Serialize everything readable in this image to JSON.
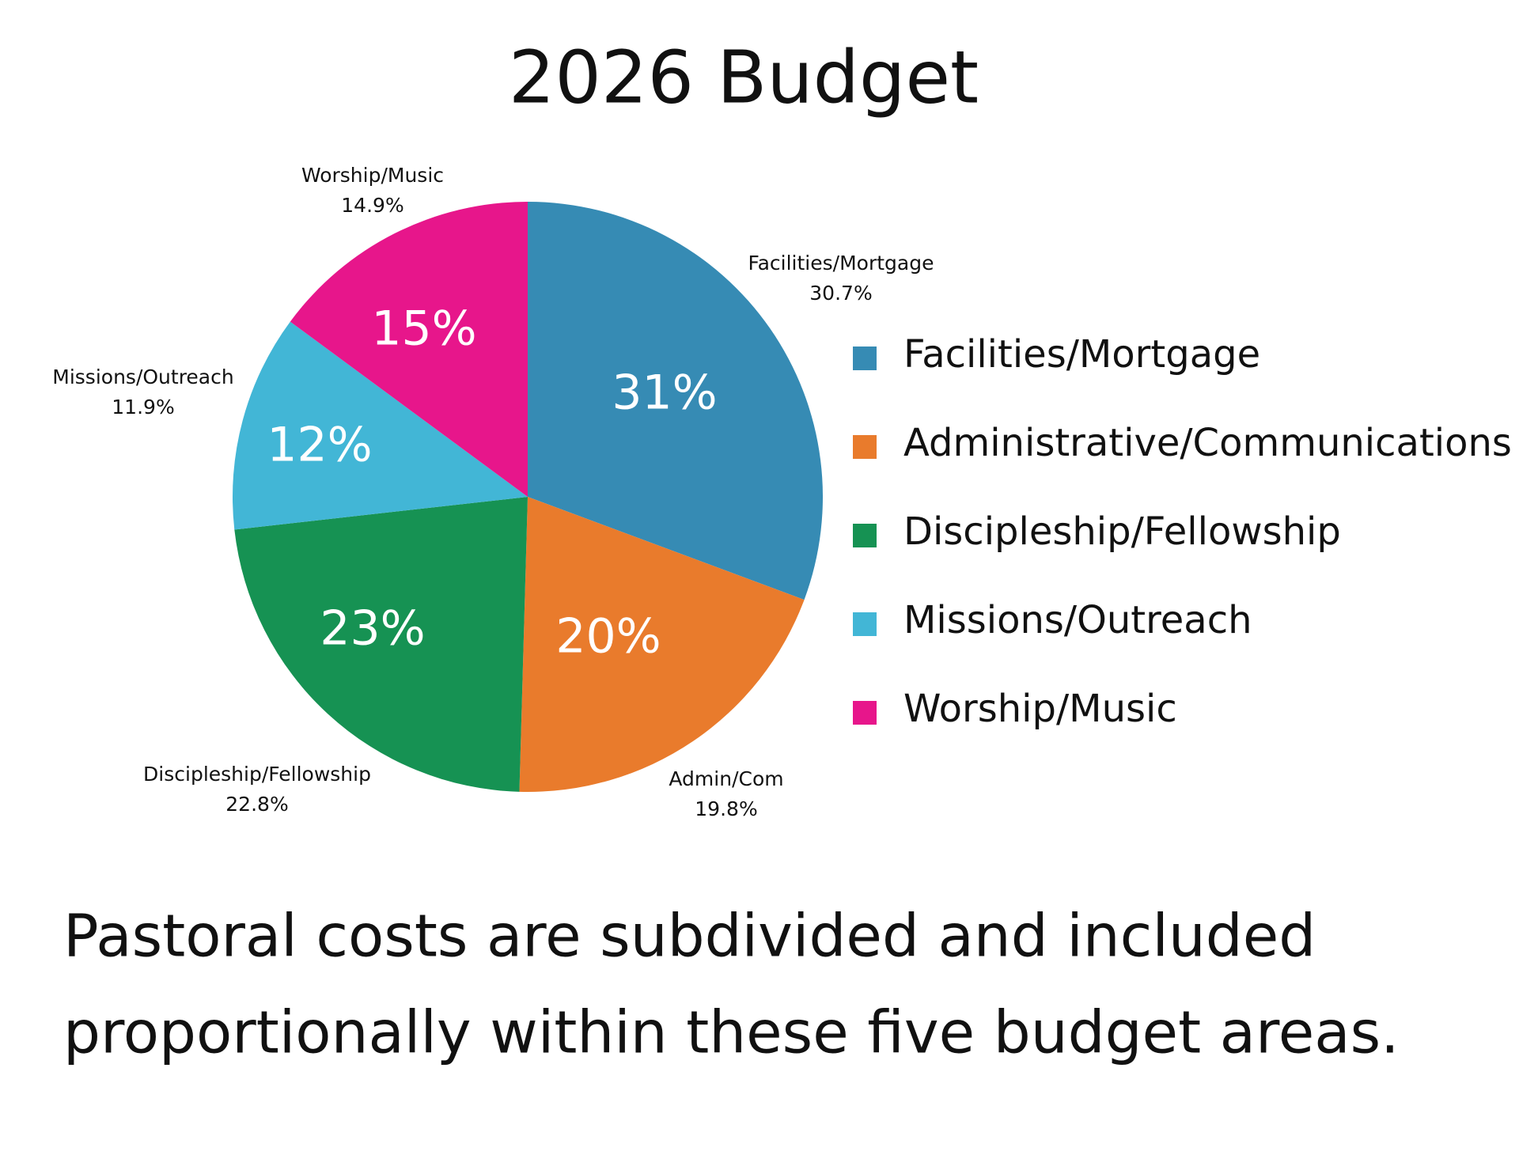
{
  "chart_data": {
    "type": "pie",
    "title": "2026 Budget",
    "categories": [
      "Facilities/Mortgage",
      "Administrative/Communications",
      "Discipleship/Fellowship",
      "Missions/Outreach",
      "Worship/Music"
    ],
    "slice_labels": [
      "Facilities/Mortgage",
      "Admin/Com",
      "Discipleship/Fellowship",
      "Missions/Outreach",
      "Worship/Music"
    ],
    "values": [
      30.7,
      19.8,
      22.8,
      11.9,
      14.9
    ],
    "value_labels": [
      "30.7%",
      "19.8%",
      "22.8%",
      "11.9%",
      "14.9%"
    ],
    "rounded_labels": [
      "31%",
      "20%",
      "23%",
      "12%",
      "15%"
    ],
    "colors": [
      "#368bb4",
      "#e97b2c",
      "#169253",
      "#42b6d6",
      "#e7168b"
    ],
    "legend": "right",
    "footnote": [
      "Pastoral costs are subdivided and included",
      "proportionally within these five budget areas."
    ]
  }
}
